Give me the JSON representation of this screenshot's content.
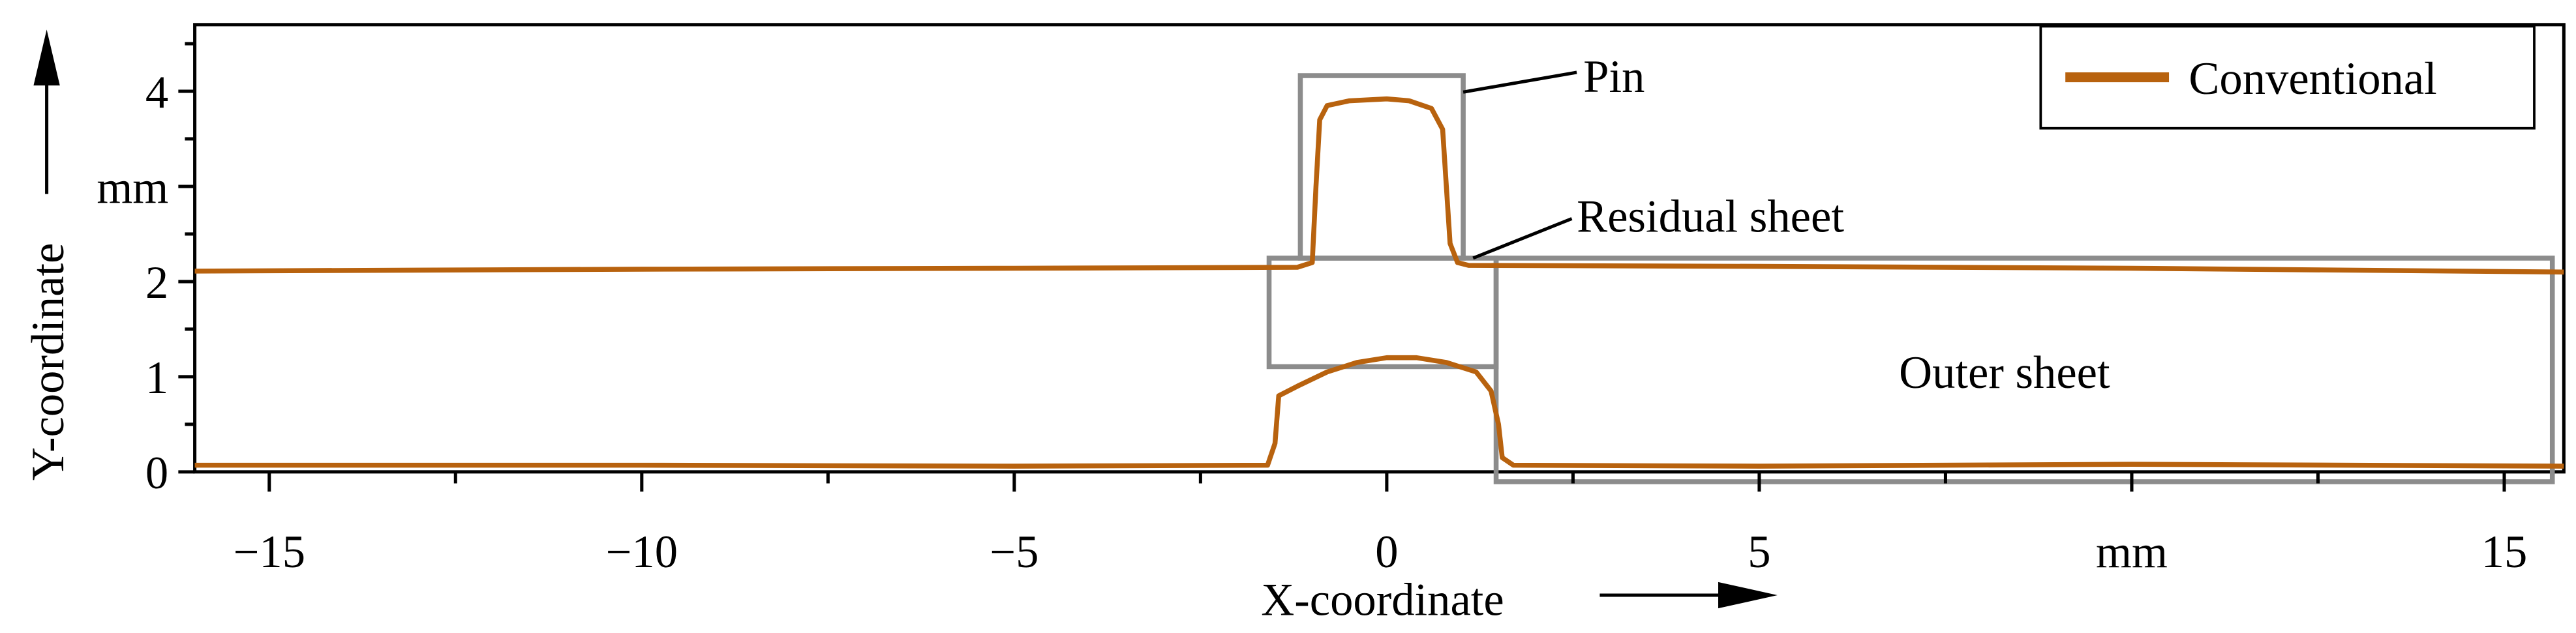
{
  "chart_data": {
    "type": "line",
    "x_label": "X-coordinate",
    "y_label": "Y-coordinate",
    "xlim": [
      -16,
      15.8
    ],
    "ylim": [
      0,
      4.7
    ],
    "xticks": [
      {
        "value": -15,
        "label": "−15"
      },
      {
        "value": -10,
        "label": "−10"
      },
      {
        "value": -5,
        "label": "−5"
      },
      0,
      5,
      {
        "value": 10,
        "label": "mm"
      },
      15
    ],
    "xminorticks": [
      -12.5,
      -7.5,
      -2.5,
      2.5,
      7.5,
      12.5
    ],
    "yticks": [
      0,
      1,
      2,
      {
        "value": 3,
        "label": "mm"
      },
      4
    ],
    "yminorticks": [
      0.5,
      1.5,
      2.5,
      3.5,
      4.5
    ],
    "legend": "upper right",
    "annotations": [
      "Pin",
      "Residual sheet",
      "Outer sheet"
    ],
    "series": [
      {
        "name": "Conventional",
        "color": "#b8620e",
        "x": [
          -16,
          -10,
          -5,
          -1.2,
          -1.0,
          -0.95,
          -0.9,
          -0.8,
          -0.5,
          0,
          0.3,
          0.6,
          0.75,
          0.8,
          0.85,
          0.95,
          1.1,
          5,
          10,
          15.8,
          null,
          -16,
          -10,
          -5,
          -1.6,
          -1.5,
          -1.45,
          -1.2,
          -0.8,
          -0.4,
          0,
          0.4,
          0.8,
          1.2,
          1.4,
          1.5,
          1.55,
          1.7,
          5,
          10,
          15.8
        ],
        "values": [
          2.11,
          2.13,
          2.14,
          2.15,
          2.2,
          3.0,
          3.7,
          3.85,
          3.9,
          3.92,
          3.9,
          3.82,
          3.6,
          3.0,
          2.4,
          2.2,
          2.17,
          2.16,
          2.14,
          2.1,
          null,
          0.07,
          0.07,
          0.06,
          0.07,
          0.3,
          0.8,
          0.9,
          1.05,
          1.15,
          1.2,
          1.2,
          1.15,
          1.05,
          0.85,
          0.5,
          0.15,
          0.07,
          0.06,
          0.08,
          0.06
        ]
      }
    ]
  }
}
